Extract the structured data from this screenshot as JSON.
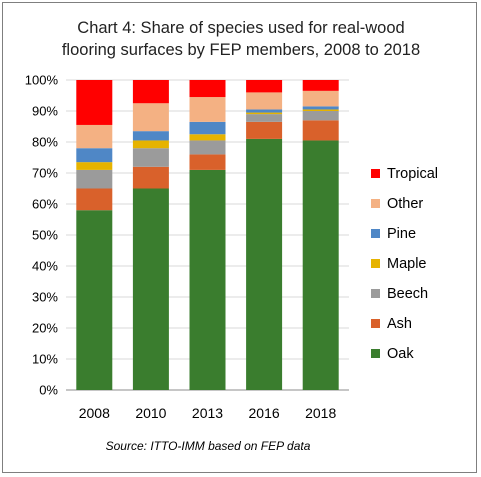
{
  "chart_data": {
    "type": "bar",
    "stacked": true,
    "title_lines": [
      "Chart 4: Share of species used for real-wood",
      "flooring surfaces by FEP members, 2008 to 2018"
    ],
    "categories": [
      "2008",
      "2010",
      "2013",
      "2016",
      "2018"
    ],
    "y_ticks": [
      "0%",
      "10%",
      "20%",
      "30%",
      "40%",
      "50%",
      "60%",
      "70%",
      "80%",
      "90%",
      "100%"
    ],
    "ylim": [
      0,
      100
    ],
    "legend_position": "right",
    "series": [
      {
        "name": "Oak",
        "color": "#3a7d2e",
        "values": [
          58,
          65,
          71,
          81,
          80.5
        ]
      },
      {
        "name": "Ash",
        "color": "#d9612b",
        "values": [
          7,
          7,
          5,
          5.5,
          6.5
        ]
      },
      {
        "name": "Beech",
        "color": "#9b9b9b",
        "values": [
          6,
          6,
          4.5,
          2.5,
          3
        ]
      },
      {
        "name": "Maple",
        "color": "#e6b300",
        "values": [
          2.5,
          2.5,
          2,
          0.5,
          0.5
        ]
      },
      {
        "name": "Pine",
        "color": "#4f87c6",
        "values": [
          4.5,
          3,
          4,
          1,
          1
        ]
      },
      {
        "name": "Other",
        "color": "#f4b183",
        "values": [
          7.5,
          9,
          8,
          5.5,
          5
        ]
      },
      {
        "name": "Tropical",
        "color": "#ff0000",
        "values": [
          14.5,
          7.5,
          5.5,
          4,
          3.5
        ]
      }
    ],
    "source": "Source: ITTO-IMM based on FEP data"
  }
}
